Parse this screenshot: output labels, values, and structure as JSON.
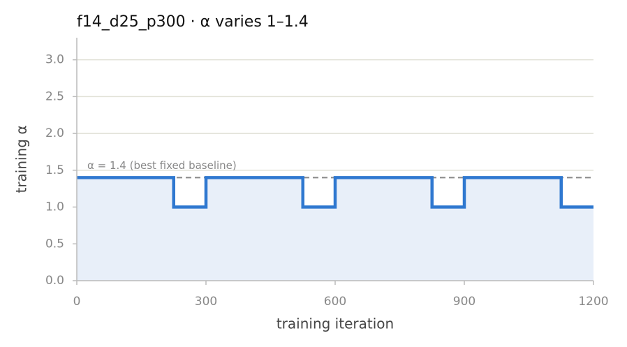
{
  "chart_data": {
    "type": "step",
    "title": "f14_d25_p300   ·   α varies 1–1.4",
    "xlabel": "training iteration",
    "ylabel": "training α",
    "x": [
      0,
      225,
      300,
      525,
      600,
      825,
      900,
      1125,
      1200
    ],
    "values": [
      1.4,
      1.0,
      1.4,
      1.0,
      1.4,
      1.0,
      1.4,
      1.0,
      1.0
    ],
    "color": "#2f78d0",
    "fill_color": "#e8eff9",
    "xlim": [
      0,
      1200
    ],
    "ylim": [
      0,
      3.3
    ],
    "xticks": [
      0,
      300,
      600,
      900,
      1200
    ],
    "yticks": [
      {
        "value": 0,
        "label": "0.0"
      },
      {
        "value": 0.5,
        "label": "0.5"
      },
      {
        "value": 1,
        "label": "1.0"
      },
      {
        "value": 1.5,
        "label": "1.5"
      },
      {
        "value": 2,
        "label": "2.0"
      },
      {
        "value": 2.5,
        "label": "2.5"
      },
      {
        "value": 3,
        "label": "3.0"
      }
    ],
    "grid": true,
    "reference_line": {
      "value": 1.4,
      "label": "α = 1.4 (best fixed baseline)",
      "color": "#888888"
    }
  }
}
